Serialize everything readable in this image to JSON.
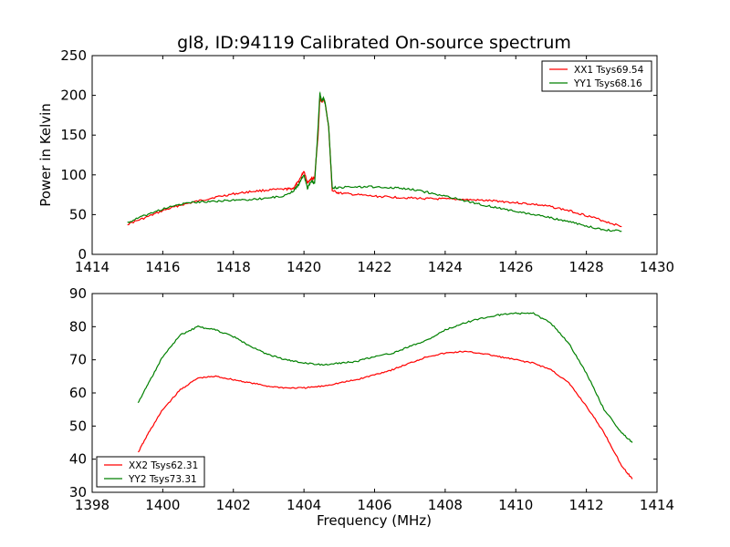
{
  "colors": {
    "xx": "#ff0000",
    "yy": "#008000",
    "axis": "#000000",
    "background": "#ffffff"
  },
  "figure": {
    "suptitle": "gl8, ID:94119 Calibrated On-source spectrum"
  },
  "chart_data": [
    {
      "type": "line",
      "title": "gl8, ID:94119 Calibrated On-source spectrum",
      "xlabel": "",
      "ylabel": "Power in Kelvin",
      "xlim": [
        1414,
        1430
      ],
      "ylim": [
        0,
        250
      ],
      "xticks": [
        1414,
        1416,
        1418,
        1420,
        1422,
        1424,
        1426,
        1428,
        1430
      ],
      "yticks": [
        0,
        50,
        100,
        150,
        200,
        250
      ],
      "legend_position": "top-right",
      "grid": false,
      "series": [
        {
          "name": "XX1 Tsys69.54",
          "color": "#ff0000",
          "x": [
            1415.0,
            1415.5,
            1416.0,
            1416.5,
            1417.0,
            1417.5,
            1418.0,
            1418.5,
            1419.0,
            1419.5,
            1419.7,
            1419.85,
            1420.0,
            1420.1,
            1420.2,
            1420.3,
            1420.4,
            1420.45,
            1420.5,
            1420.55,
            1420.6,
            1420.7,
            1420.8,
            1421.0,
            1421.5,
            1422.0,
            1422.5,
            1423.0,
            1423.5,
            1424.0,
            1424.5,
            1425.0,
            1425.5,
            1426.0,
            1426.5,
            1427.0,
            1427.5,
            1428.0,
            1428.5,
            1429.0
          ],
          "y": [
            38,
            46,
            55,
            62,
            67,
            72,
            76,
            79,
            81,
            82,
            83,
            92,
            105,
            90,
            95,
            96,
            150,
            196,
            192,
            195,
            190,
            160,
            80,
            77,
            75,
            73,
            72,
            71,
            70,
            69.5,
            69,
            68,
            67,
            65,
            63,
            60,
            55,
            49,
            42,
            35
          ]
        },
        {
          "name": "YY1 Tsys68.16",
          "color": "#008000",
          "x": [
            1415.0,
            1415.5,
            1416.0,
            1416.5,
            1417.0,
            1417.5,
            1418.0,
            1418.5,
            1419.0,
            1419.5,
            1419.7,
            1419.85,
            1420.0,
            1420.1,
            1420.2,
            1420.3,
            1420.4,
            1420.45,
            1420.5,
            1420.55,
            1420.6,
            1420.7,
            1420.8,
            1421.0,
            1421.5,
            1422.0,
            1422.5,
            1423.0,
            1423.5,
            1424.0,
            1424.5,
            1425.0,
            1425.5,
            1426.0,
            1426.5,
            1427.0,
            1427.5,
            1428.0,
            1428.5,
            1429.0
          ],
          "y": [
            40,
            49,
            57,
            63,
            66,
            67,
            68,
            69,
            71,
            74,
            80,
            88,
            100,
            83,
            92,
            90,
            160,
            203,
            193,
            197,
            190,
            160,
            84,
            84,
            85,
            85,
            84,
            82,
            78,
            73,
            68,
            63,
            58,
            54,
            50,
            46,
            41,
            36,
            31,
            29
          ]
        }
      ]
    },
    {
      "type": "line",
      "title": "",
      "xlabel": "Frequency (MHz)",
      "ylabel": "",
      "xlim": [
        1398,
        1414
      ],
      "ylim": [
        30,
        90
      ],
      "xticks": [
        1398,
        1400,
        1402,
        1404,
        1406,
        1408,
        1410,
        1412,
        1414
      ],
      "yticks": [
        30,
        40,
        50,
        60,
        70,
        80,
        90
      ],
      "legend_position": "bottom-left",
      "grid": false,
      "series": [
        {
          "name": "XX2 Tsys62.31",
          "color": "#ff0000",
          "x": [
            1399.3,
            1399.6,
            1400.0,
            1400.5,
            1401.0,
            1401.5,
            1402.0,
            1402.5,
            1403.0,
            1403.5,
            1404.0,
            1404.5,
            1405.0,
            1405.5,
            1406.0,
            1406.5,
            1407.0,
            1407.5,
            1408.0,
            1408.5,
            1409.0,
            1409.5,
            1410.0,
            1410.5,
            1411.0,
            1411.5,
            1412.0,
            1412.5,
            1413.0,
            1413.3
          ],
          "y": [
            42,
            48,
            55,
            61,
            64.5,
            65,
            64,
            63,
            62,
            61.5,
            61.5,
            62,
            63,
            64,
            65.5,
            67,
            69,
            71,
            72,
            72.5,
            72,
            71,
            70,
            69,
            67,
            63,
            56,
            48,
            38,
            34
          ]
        },
        {
          "name": "YY2 Tsys73.31",
          "color": "#008000",
          "x": [
            1399.3,
            1399.6,
            1400.0,
            1400.5,
            1401.0,
            1401.5,
            1402.0,
            1402.5,
            1403.0,
            1403.5,
            1404.0,
            1404.5,
            1405.0,
            1405.5,
            1406.0,
            1406.5,
            1407.0,
            1407.5,
            1408.0,
            1408.5,
            1409.0,
            1409.5,
            1410.0,
            1410.5,
            1411.0,
            1411.5,
            1412.0,
            1412.5,
            1413.0,
            1413.3
          ],
          "y": [
            57,
            63,
            71,
            77.5,
            80,
            79,
            77,
            74,
            71.5,
            70,
            69,
            68.5,
            69,
            69.5,
            71,
            72,
            74,
            76,
            79,
            81,
            82.5,
            83.5,
            84,
            84,
            81,
            75,
            66,
            55,
            48,
            45
          ]
        }
      ]
    }
  ]
}
